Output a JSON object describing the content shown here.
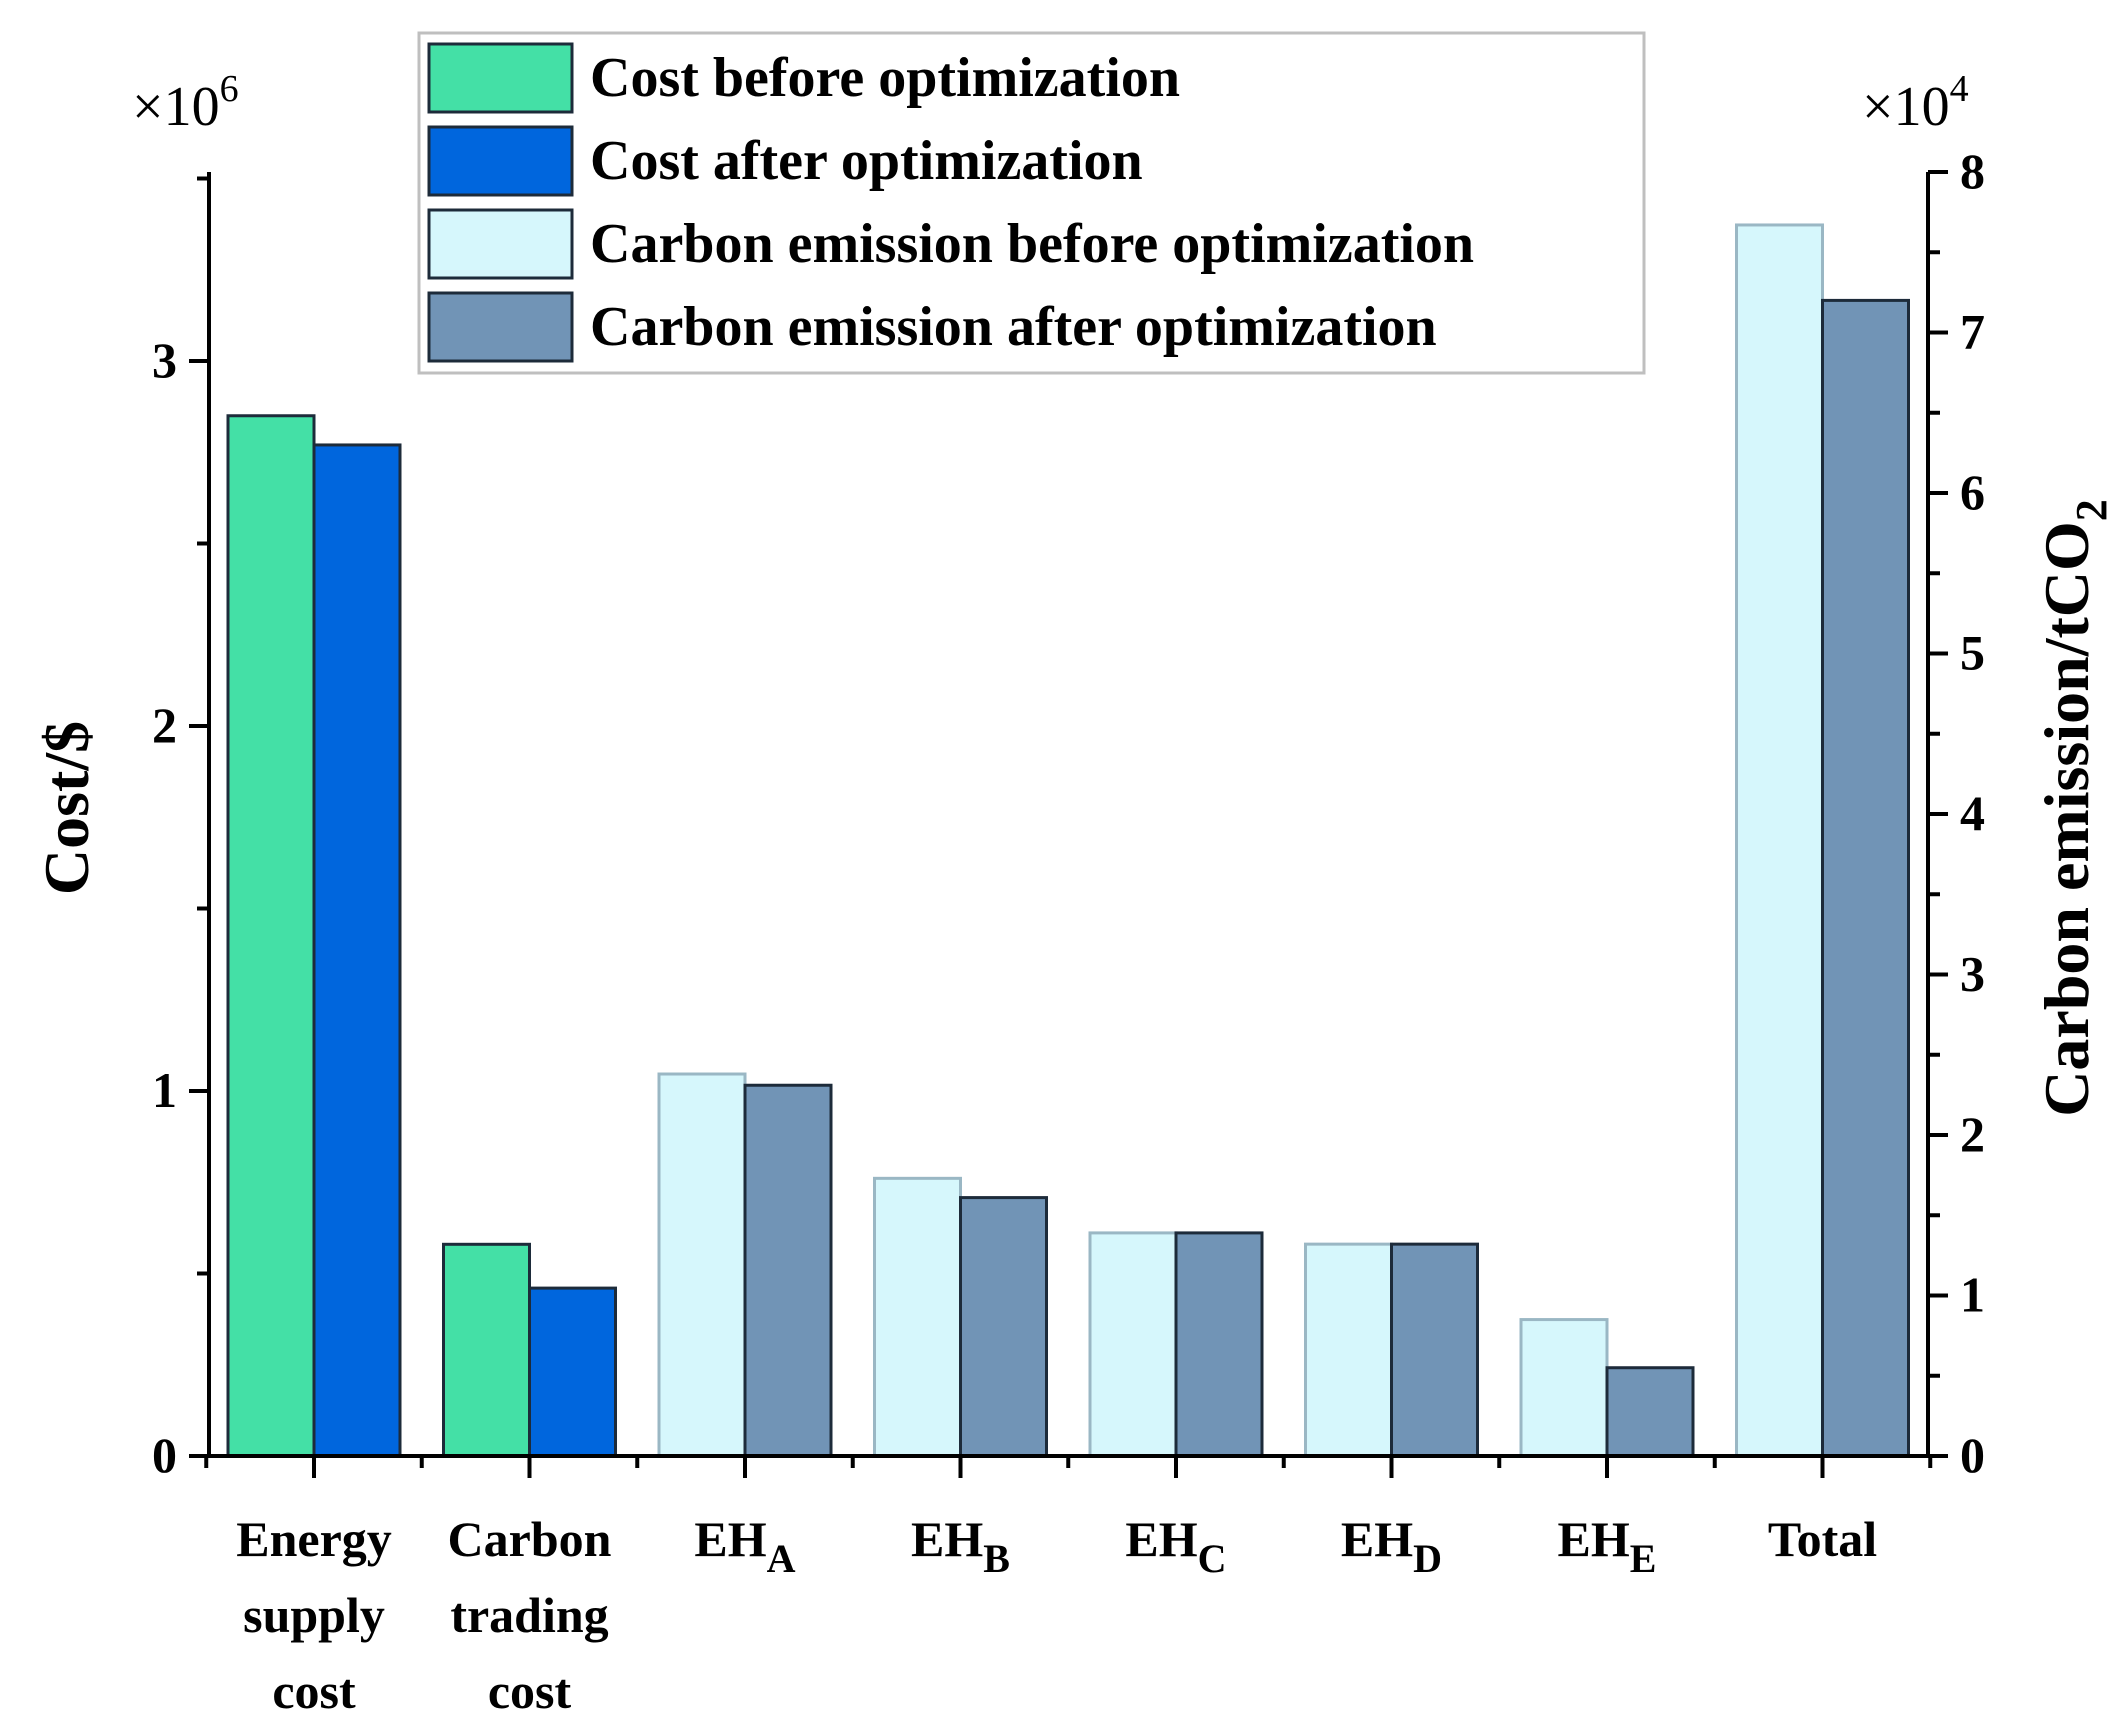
{
  "chart_data": {
    "type": "bar",
    "categories": [
      {
        "id": "energy",
        "lines": [
          "Energy",
          "supply",
          "cost"
        ],
        "sub": ""
      },
      {
        "id": "carbon-trading",
        "lines": [
          "Carbon",
          "trading",
          "cost"
        ],
        "sub": ""
      },
      {
        "id": "eha",
        "lines": [
          "EH"
        ],
        "sub": "A"
      },
      {
        "id": "ehb",
        "lines": [
          "EH"
        ],
        "sub": "B"
      },
      {
        "id": "ehc",
        "lines": [
          "EH"
        ],
        "sub": "C"
      },
      {
        "id": "ehd",
        "lines": [
          "EH"
        ],
        "sub": "D"
      },
      {
        "id": "ehe",
        "lines": [
          "EH"
        ],
        "sub": "E"
      },
      {
        "id": "total",
        "lines": [
          "Total"
        ],
        "sub": ""
      }
    ],
    "series": [
      {
        "key": "cost_before",
        "name": "Cost before optimization",
        "axis": "left",
        "color": "#44e0a6",
        "values": [
          2.85,
          0.58,
          null,
          null,
          null,
          null,
          null,
          null
        ]
      },
      {
        "key": "cost_after",
        "name": "Cost after optimization",
        "axis": "left",
        "color": "#0066dd",
        "values": [
          2.77,
          0.46,
          null,
          null,
          null,
          null,
          null,
          null
        ]
      },
      {
        "key": "carbon_before",
        "name": "Carbon emission before optimization",
        "axis": "right",
        "color": "#d6f7fc",
        "values": [
          null,
          null,
          2.38,
          1.73,
          1.39,
          1.32,
          0.85,
          7.67
        ]
      },
      {
        "key": "carbon_after",
        "name": "Carbon emission after optimization",
        "axis": "right",
        "color": "#7194b6",
        "values": [
          null,
          null,
          2.31,
          1.61,
          1.39,
          1.32,
          0.55,
          7.2
        ]
      }
    ],
    "left_axis": {
      "label": "Cost/$",
      "multiplier_base": "×10",
      "multiplier_exp": "6",
      "ylim": [
        0,
        3.5
      ],
      "ticks": [
        "0",
        "1",
        "2",
        "3"
      ]
    },
    "right_axis": {
      "label": "Carbon emission/tCO",
      "label_sub": "2",
      "multiplier_base": "×10",
      "multiplier_exp": "4",
      "ylim": [
        0,
        8
      ],
      "ticks": [
        "0",
        "1",
        "2",
        "3",
        "4",
        "5",
        "6",
        "7",
        "8"
      ]
    },
    "legend_position": "top-center"
  }
}
